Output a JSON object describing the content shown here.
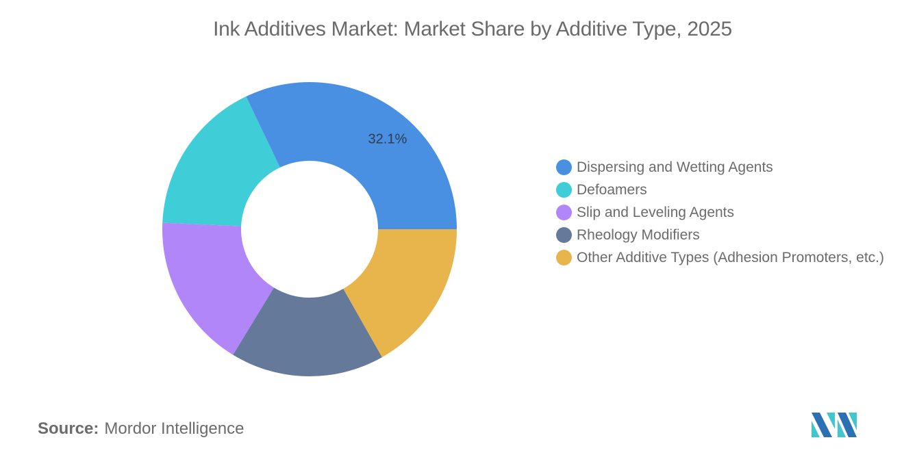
{
  "title": "Ink Additives Market: Market Share by Additive Type, 2025",
  "source": {
    "label": "Source:",
    "value": "Mordor Intelligence"
  },
  "logo": {
    "icon": "mordor-intelligence-logo-icon",
    "colors": [
      "#2b6fb5",
      "#3fc6cf"
    ]
  },
  "chart_data": {
    "type": "pie",
    "subtype": "donut",
    "title": "Ink Additives Market: Market Share by Additive Type, 2025",
    "categories": [
      "Dispersing and Wetting Agents",
      "Defoamers",
      "Slip and Leveling Agents",
      "Rheology Modifiers",
      "Other Additive Types (Adhesion Promoters, etc.)"
    ],
    "values": [
      32.1,
      17.2,
      17.0,
      16.9,
      16.8
    ],
    "colors": [
      "#4a90e2",
      "#3fcdd8",
      "#b086f9",
      "#65799b",
      "#e8b54d"
    ],
    "data_labels": [
      "32.1%",
      "",
      "",
      "",
      ""
    ],
    "units": "%",
    "legend_position": "right",
    "start_angle_deg": 0,
    "direction": "counterclockwise"
  },
  "legend": {
    "items": [
      {
        "label": "Dispersing and Wetting Agents",
        "color": "#4a90e2"
      },
      {
        "label": "Defoamers",
        "color": "#3fcdd8"
      },
      {
        "label": "Slip and Leveling Agents",
        "color": "#b086f9"
      },
      {
        "label": "Rheology Modifiers",
        "color": "#65799b"
      },
      {
        "label": "Other Additive Types (Adhesion Promoters, etc.)",
        "color": "#e8b54d"
      }
    ]
  }
}
